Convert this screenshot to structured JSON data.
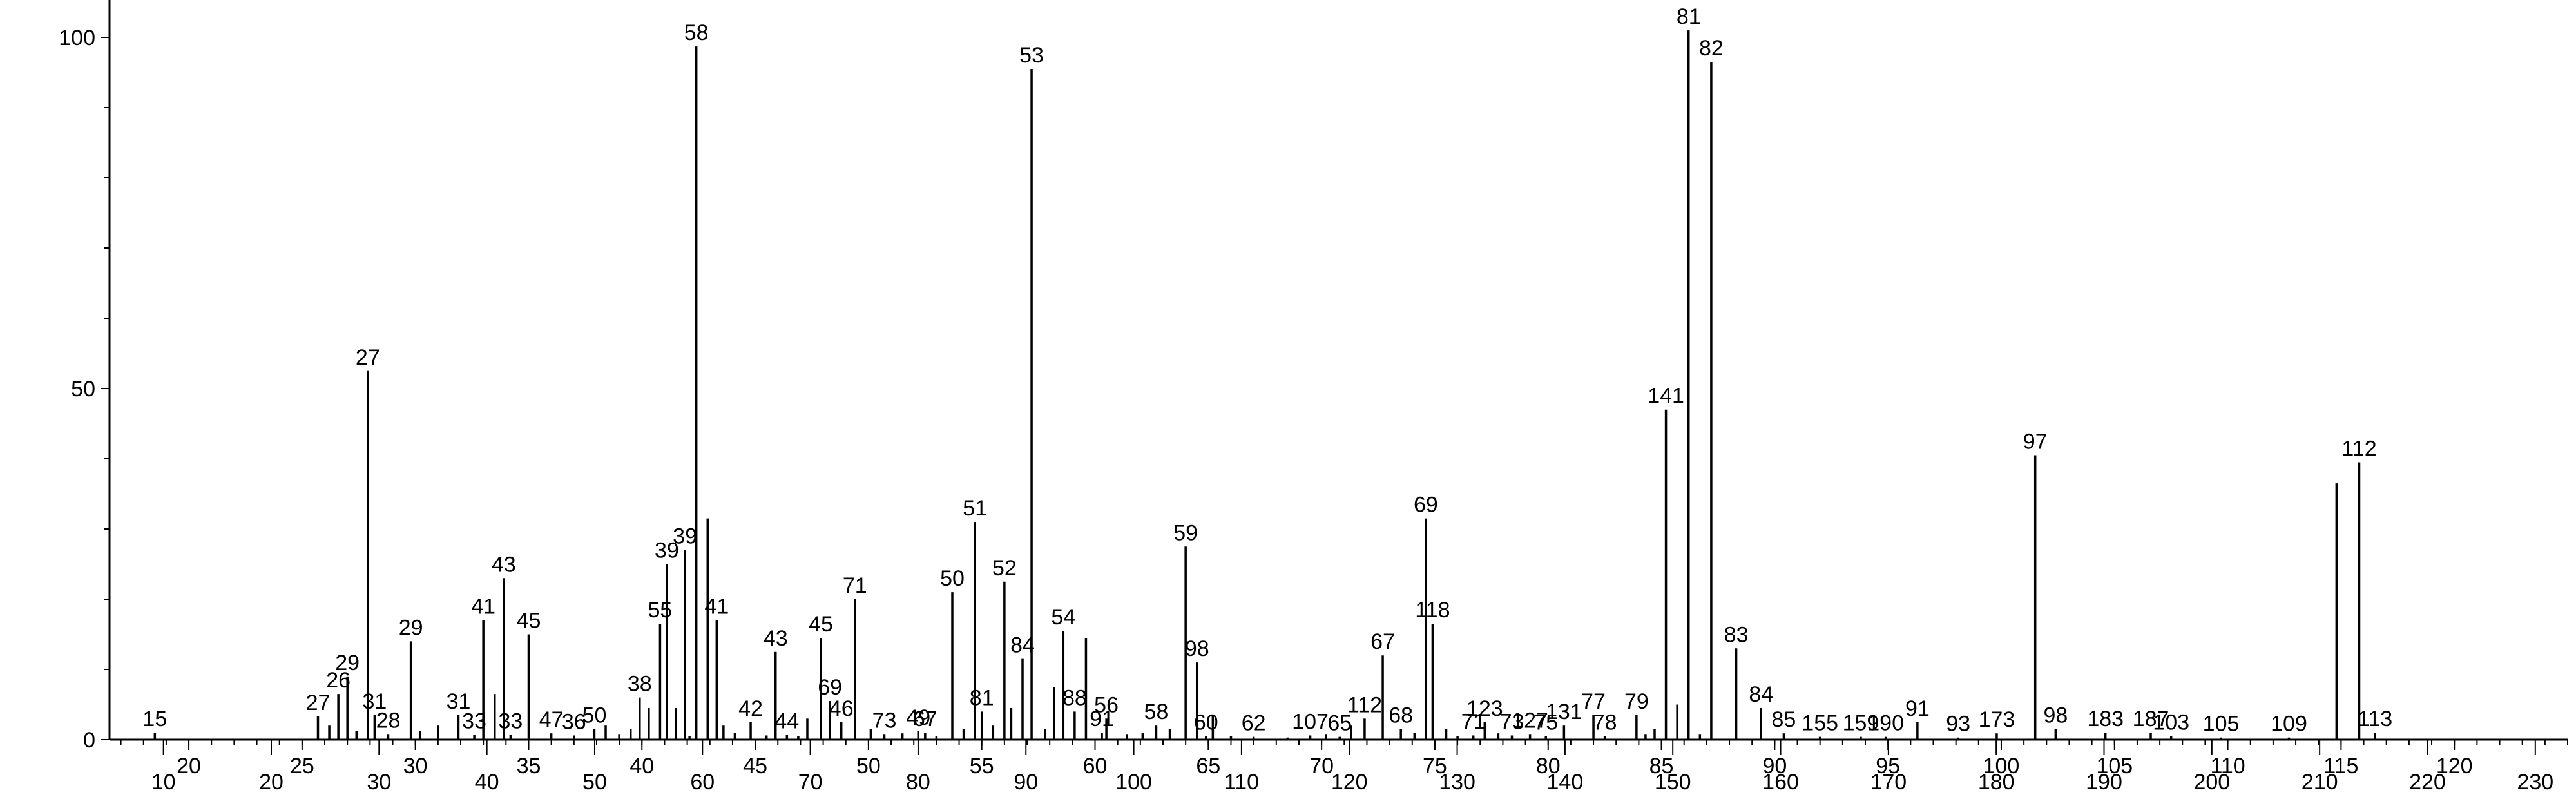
{
  "chart_data": {
    "type": "bar",
    "title": "",
    "xlabel": "",
    "ylabel": "",
    "ylim": [
      0,
      100
    ],
    "y_ticks": [
      0,
      50,
      100
    ],
    "grid": false,
    "colors": {
      "axis": "#000000",
      "bars": "#000000",
      "background": "#ffffff"
    },
    "x_axis_rows": [
      {
        "row": 1,
        "xlim": [
          16.5,
          125
        ],
        "ticks": [
          "20",
          "25",
          "30",
          "35",
          "40",
          "45",
          "50",
          "55",
          "60",
          "65",
          "70",
          "75",
          "80",
          "85",
          "90",
          "95",
          "100",
          "105",
          "110",
          "115",
          "120"
        ],
        "tick_values": [
          20,
          25,
          30,
          35,
          40,
          45,
          50,
          55,
          60,
          65,
          70,
          75,
          80,
          85,
          90,
          95,
          100,
          105,
          110,
          115,
          120
        ]
      },
      {
        "row": 2,
        "xlim": [
          5,
          233
        ],
        "ticks": [
          "10",
          "20",
          "30",
          "40",
          "50",
          "60",
          "70",
          "80",
          "90",
          "100",
          "110",
          "120",
          "130",
          "140",
          "150",
          "160",
          "170",
          "180",
          "190",
          "200",
          "210",
          "220",
          "230"
        ],
        "tick_values": [
          10,
          20,
          30,
          40,
          50,
          60,
          70,
          80,
          90,
          100,
          110,
          120,
          130,
          140,
          150,
          160,
          170,
          180,
          190,
          200,
          210,
          220,
          230
        ]
      }
    ],
    "peaks": [
      {
        "x": 18.5,
        "y": 1.0,
        "label": "15"
      },
      {
        "x": 25.7,
        "y": 3.3,
        "label": "27"
      },
      {
        "x": 26.2,
        "y": 2.0,
        "label": ""
      },
      {
        "x": 26.6,
        "y": 6.5,
        "label": "26"
      },
      {
        "x": 27.0,
        "y": 9.0,
        "label": "29"
      },
      {
        "x": 27.4,
        "y": 1.2,
        "label": ""
      },
      {
        "x": 27.9,
        "y": 52.5,
        "label": "27"
      },
      {
        "x": 28.2,
        "y": 3.5,
        "label": "31"
      },
      {
        "x": 28.8,
        "y": 0.8,
        "label": "28"
      },
      {
        "x": 29.8,
        "y": 14.0,
        "label": "29"
      },
      {
        "x": 30.2,
        "y": 1.2,
        "label": ""
      },
      {
        "x": 31.0,
        "y": 2.0,
        "label": ""
      },
      {
        "x": 31.9,
        "y": 3.5,
        "label": "31"
      },
      {
        "x": 32.6,
        "y": 0.7,
        "label": "33"
      },
      {
        "x": 33.0,
        "y": 17.0,
        "label": "41"
      },
      {
        "x": 33.5,
        "y": 6.5,
        "label": ""
      },
      {
        "x": 33.9,
        "y": 23.0,
        "label": "43"
      },
      {
        "x": 34.2,
        "y": 0.7,
        "label": "33"
      },
      {
        "x": 35.0,
        "y": 15.0,
        "label": "45"
      },
      {
        "x": 36.0,
        "y": 0.9,
        "label": "47"
      },
      {
        "x": 37.0,
        "y": 0.6,
        "label": "36"
      },
      {
        "x": 37.9,
        "y": 1.5,
        "label": "50"
      },
      {
        "x": 38.4,
        "y": 2.0,
        "label": ""
      },
      {
        "x": 39.0,
        "y": 0.8,
        "label": ""
      },
      {
        "x": 39.5,
        "y": 1.5,
        "label": ""
      },
      {
        "x": 39.9,
        "y": 6.0,
        "label": "38"
      },
      {
        "x": 40.3,
        "y": 4.5,
        "label": ""
      },
      {
        "x": 40.8,
        "y": 16.5,
        "label": "55"
      },
      {
        "x": 41.1,
        "y": 25.0,
        "label": "39"
      },
      {
        "x": 41.5,
        "y": 4.5,
        "label": ""
      },
      {
        "x": 41.9,
        "y": 27.0,
        "label": "39"
      },
      {
        "x": 42.1,
        "y": 0.5,
        "label": ""
      },
      {
        "x": 42.4,
        "y": 98.7,
        "label": "58"
      },
      {
        "x": 42.9,
        "y": 31.5,
        "label": ""
      },
      {
        "x": 43.3,
        "y": 17.0,
        "label": "41"
      },
      {
        "x": 43.6,
        "y": 2.0,
        "label": ""
      },
      {
        "x": 44.1,
        "y": 1.0,
        "label": ""
      },
      {
        "x": 44.8,
        "y": 2.5,
        "label": "42"
      },
      {
        "x": 45.5,
        "y": 0.6,
        "label": ""
      },
      {
        "x": 45.9,
        "y": 12.5,
        "label": "43"
      },
      {
        "x": 46.4,
        "y": 0.7,
        "label": "44"
      },
      {
        "x": 46.9,
        "y": 0.5,
        "label": ""
      },
      {
        "x": 47.3,
        "y": 3.0,
        "label": ""
      },
      {
        "x": 47.9,
        "y": 14.5,
        "label": "45"
      },
      {
        "x": 48.3,
        "y": 5.5,
        "label": "69"
      },
      {
        "x": 48.8,
        "y": 2.5,
        "label": "46"
      },
      {
        "x": 49.4,
        "y": 20.0,
        "label": "71"
      },
      {
        "x": 50.1,
        "y": 1.5,
        "label": ""
      },
      {
        "x": 50.7,
        "y": 0.8,
        "label": "73"
      },
      {
        "x": 51.5,
        "y": 0.9,
        "label": ""
      },
      {
        "x": 52.2,
        "y": 1.2,
        "label": "49"
      },
      {
        "x": 52.5,
        "y": 1.0,
        "label": "67"
      },
      {
        "x": 53.0,
        "y": 0.5,
        "label": ""
      },
      {
        "x": 53.7,
        "y": 21.0,
        "label": "50"
      },
      {
        "x": 54.2,
        "y": 1.5,
        "label": ""
      },
      {
        "x": 54.7,
        "y": 31.0,
        "label": "51"
      },
      {
        "x": 55.0,
        "y": 4.0,
        "label": "81"
      },
      {
        "x": 55.5,
        "y": 2.0,
        "label": ""
      },
      {
        "x": 56.0,
        "y": 22.5,
        "label": "52"
      },
      {
        "x": 56.3,
        "y": 4.5,
        "label": ""
      },
      {
        "x": 56.8,
        "y": 11.5,
        "label": "84"
      },
      {
        "x": 57.2,
        "y": 95.5,
        "label": "53"
      },
      {
        "x": 57.8,
        "y": 1.5,
        "label": ""
      },
      {
        "x": 58.2,
        "y": 7.5,
        "label": ""
      },
      {
        "x": 58.6,
        "y": 15.5,
        "label": "54"
      },
      {
        "x": 59.1,
        "y": 4.0,
        "label": "88"
      },
      {
        "x": 59.6,
        "y": 14.5,
        "label": ""
      },
      {
        "x": 60.3,
        "y": 1.0,
        "label": "91"
      },
      {
        "x": 60.5,
        "y": 3.0,
        "label": "56"
      },
      {
        "x": 61.4,
        "y": 0.8,
        "label": ""
      },
      {
        "x": 62.1,
        "y": 1.0,
        "label": ""
      },
      {
        "x": 62.7,
        "y": 2.0,
        "label": "58"
      },
      {
        "x": 63.3,
        "y": 1.5,
        "label": ""
      },
      {
        "x": 64.0,
        "y": 27.5,
        "label": "59"
      },
      {
        "x": 64.5,
        "y": 11.0,
        "label": "98"
      },
      {
        "x": 64.9,
        "y": 0.5,
        "label": "60"
      },
      {
        "x": 65.2,
        "y": 3.5,
        "label": ""
      },
      {
        "x": 66.0,
        "y": 0.5,
        "label": ""
      },
      {
        "x": 67.0,
        "y": 0.4,
        "label": "62"
      },
      {
        "x": 68.5,
        "y": 0.3,
        "label": ""
      },
      {
        "x": 69.5,
        "y": 0.6,
        "label": "107"
      },
      {
        "x": 70.2,
        "y": 0.8,
        "label": ""
      },
      {
        "x": 70.8,
        "y": 0.4,
        "label": "65"
      },
      {
        "x": 71.3,
        "y": 2.0,
        "label": ""
      },
      {
        "x": 71.9,
        "y": 3.0,
        "label": "112"
      },
      {
        "x": 72.7,
        "y": 12.0,
        "label": "67"
      },
      {
        "x": 73.5,
        "y": 1.5,
        "label": "68"
      },
      {
        "x": 74.1,
        "y": 1.0,
        "label": ""
      },
      {
        "x": 74.6,
        "y": 31.5,
        "label": "69"
      },
      {
        "x": 74.9,
        "y": 16.5,
        "label": "118"
      },
      {
        "x": 75.5,
        "y": 1.5,
        "label": ""
      },
      {
        "x": 76.0,
        "y": 0.5,
        "label": ""
      },
      {
        "x": 76.7,
        "y": 0.6,
        "label": "71"
      },
      {
        "x": 77.2,
        "y": 2.5,
        "label": "123"
      },
      {
        "x": 77.8,
        "y": 0.9,
        "label": ""
      },
      {
        "x": 78.4,
        "y": 0.6,
        "label": "73"
      },
      {
        "x": 79.2,
        "y": 0.8,
        "label": "127"
      },
      {
        "x": 79.9,
        "y": 0.5,
        "label": "75"
      },
      {
        "x": 80.7,
        "y": 2.0,
        "label": "131"
      },
      {
        "x": 82.0,
        "y": 3.5,
        "label": "77"
      },
      {
        "x": 82.5,
        "y": 0.5,
        "label": "78"
      },
      {
        "x": 83.9,
        "y": 3.5,
        "label": "79"
      },
      {
        "x": 84.3,
        "y": 0.8,
        "label": ""
      },
      {
        "x": 84.7,
        "y": 1.5,
        "label": ""
      },
      {
        "x": 85.2,
        "y": 47.0,
        "label": "141"
      },
      {
        "x": 85.7,
        "y": 5.0,
        "label": ""
      },
      {
        "x": 86.2,
        "y": 101.0,
        "label": "81"
      },
      {
        "x": 86.7,
        "y": 0.8,
        "label": ""
      },
      {
        "x": 87.2,
        "y": 96.5,
        "label": "82"
      },
      {
        "x": 88.3,
        "y": 13.0,
        "label": "83"
      },
      {
        "x": 89.4,
        "y": 4.5,
        "label": "84"
      },
      {
        "x": 90.4,
        "y": 0.9,
        "label": "85"
      },
      {
        "x": 92.0,
        "y": 0.4,
        "label": "155"
      },
      {
        "x": 93.8,
        "y": 0.4,
        "label": "159"
      },
      {
        "x": 94.9,
        "y": 0.4,
        "label": "190"
      },
      {
        "x": 96.3,
        "y": 2.5,
        "label": "91"
      },
      {
        "x": 98.1,
        "y": 0.3,
        "label": "93"
      },
      {
        "x": 99.8,
        "y": 0.9,
        "label": "173"
      },
      {
        "x": 101.5,
        "y": 40.5,
        "label": "97"
      },
      {
        "x": 102.4,
        "y": 1.5,
        "label": "98"
      },
      {
        "x": 104.6,
        "y": 1.0,
        "label": "183"
      },
      {
        "x": 106.6,
        "y": 1.0,
        "label": "187"
      },
      {
        "x": 107.5,
        "y": 0.5,
        "label": "103"
      },
      {
        "x": 109.7,
        "y": 0.3,
        "label": "105"
      },
      {
        "x": 112.7,
        "y": 0.3,
        "label": "109"
      },
      {
        "x": 114.8,
        "y": 36.5,
        "label": ""
      },
      {
        "x": 115.8,
        "y": 39.5,
        "label": "112"
      },
      {
        "x": 116.5,
        "y": 1.0,
        "label": "113"
      }
    ]
  }
}
